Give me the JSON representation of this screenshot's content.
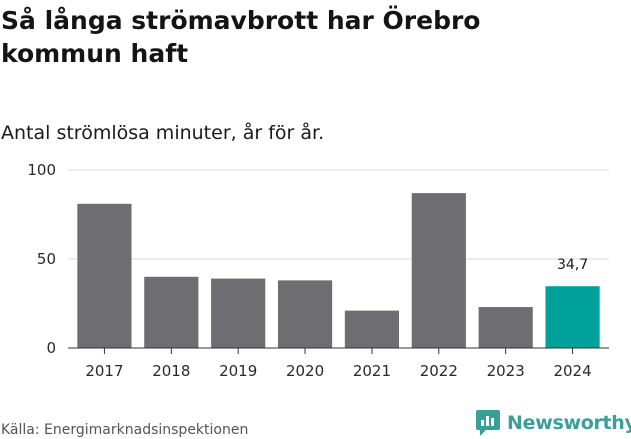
{
  "header": {
    "title": "Så långa strömavbrott har Örebro kommun haft",
    "subtitle": "Antal strömlösa minuter, år för år."
  },
  "footer": {
    "source": "Källa: Energimarknadsinspektionen",
    "brand": "Newsworthy",
    "brand_color": "#3a9f98",
    "brand_icon": "chart-speech-bubble-icon"
  },
  "colors": {
    "bar_default": "#6e6d72",
    "bar_highlight": "#00a19a",
    "grid": "#d9d9d9",
    "axis": "#333333"
  },
  "chart_data": {
    "type": "bar",
    "title": "Så långa strömavbrott har Örebro kommun haft",
    "subtitle": "Antal strömlösa minuter, år för år.",
    "xlabel": "",
    "ylabel": "",
    "categories": [
      "2017",
      "2018",
      "2019",
      "2020",
      "2021",
      "2022",
      "2023",
      "2024"
    ],
    "values": [
      81,
      40,
      39,
      38,
      21,
      87,
      23,
      34.7
    ],
    "highlight_index": 7,
    "data_labels": [
      {
        "index": 7,
        "text": "34,7"
      }
    ],
    "ylim": [
      0,
      100
    ],
    "yticks": [
      0,
      50,
      100
    ],
    "ytick_labels": [
      "0",
      "50",
      "100"
    ],
    "grid": true,
    "legend": "none"
  }
}
